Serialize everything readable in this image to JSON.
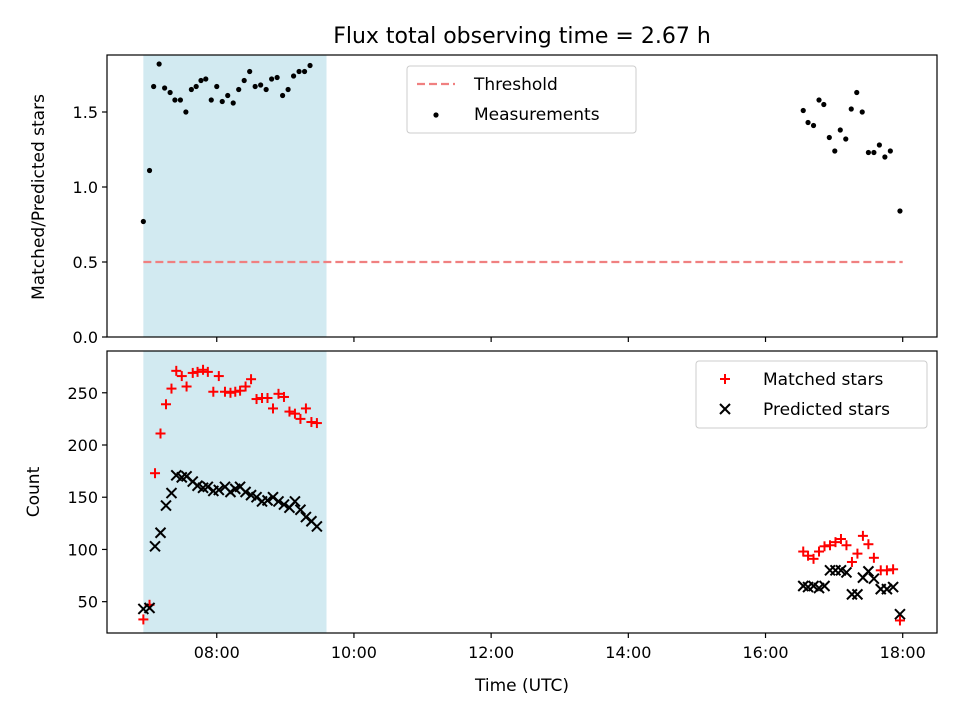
{
  "figure": {
    "title": "Flux total observing time = 2.67 h",
    "xlabel": "Time (UTC)",
    "x_ticks": [
      {
        "hours": 8,
        "label": "08:00"
      },
      {
        "hours": 10,
        "label": "10:00"
      },
      {
        "hours": 12,
        "label": "12:00"
      },
      {
        "hours": 14,
        "label": "14:00"
      },
      {
        "hours": 16,
        "label": "16:00"
      },
      {
        "hours": 18,
        "label": "18:00"
      }
    ],
    "xlim_hours": [
      6.4,
      18.5
    ],
    "shaded_region_hours": [
      6.93,
      9.6
    ],
    "shade_color": "#add8e6"
  },
  "chart_data": [
    {
      "type": "scatter",
      "ylabel": "Matched/Predicted stars",
      "ylim": [
        0,
        1.88
      ],
      "yticks": [
        0.0,
        0.5,
        1.0,
        1.5
      ],
      "ytick_labels": [
        "0.0",
        "0.5",
        "1.0",
        "1.5"
      ],
      "legend_position": "top-center",
      "threshold": {
        "name": "Threshold",
        "value": 0.5,
        "x_range_hours": [
          6.93,
          18.0
        ],
        "color": "#f08080"
      },
      "series": [
        {
          "name": "Measurements",
          "color": "#000000",
          "points": [
            [
              6.93,
              0.77
            ],
            [
              7.02,
              1.11
            ],
            [
              7.08,
              1.67
            ],
            [
              7.16,
              1.82
            ],
            [
              7.24,
              1.66
            ],
            [
              7.32,
              1.63
            ],
            [
              7.39,
              1.58
            ],
            [
              7.47,
              1.58
            ],
            [
              7.55,
              1.5
            ],
            [
              7.63,
              1.65
            ],
            [
              7.7,
              1.67
            ],
            [
              7.77,
              1.71
            ],
            [
              7.84,
              1.72
            ],
            [
              7.92,
              1.58
            ],
            [
              8.0,
              1.67
            ],
            [
              8.08,
              1.57
            ],
            [
              8.16,
              1.61
            ],
            [
              8.24,
              1.56
            ],
            [
              8.32,
              1.65
            ],
            [
              8.4,
              1.71
            ],
            [
              8.48,
              1.77
            ],
            [
              8.56,
              1.67
            ],
            [
              8.64,
              1.68
            ],
            [
              8.72,
              1.65
            ],
            [
              8.8,
              1.72
            ],
            [
              8.88,
              1.73
            ],
            [
              8.96,
              1.61
            ],
            [
              9.04,
              1.65
            ],
            [
              9.12,
              1.74
            ],
            [
              9.2,
              1.77
            ],
            [
              9.28,
              1.77
            ],
            [
              9.36,
              1.81
            ],
            [
              16.55,
              1.51
            ],
            [
              16.62,
              1.43
            ],
            [
              16.7,
              1.41
            ],
            [
              16.78,
              1.58
            ],
            [
              16.85,
              1.55
            ],
            [
              16.93,
              1.33
            ],
            [
              17.01,
              1.24
            ],
            [
              17.09,
              1.38
            ],
            [
              17.17,
              1.32
            ],
            [
              17.25,
              1.52
            ],
            [
              17.33,
              1.63
            ],
            [
              17.41,
              1.5
            ],
            [
              17.5,
              1.23
            ],
            [
              17.58,
              1.23
            ],
            [
              17.66,
              1.28
            ],
            [
              17.74,
              1.2
            ],
            [
              17.82,
              1.24
            ],
            [
              17.96,
              0.84
            ]
          ]
        }
      ]
    },
    {
      "type": "scatter",
      "ylabel": "Count",
      "ylim": [
        20,
        290
      ],
      "yticks": [
        50,
        100,
        150,
        200,
        250
      ],
      "ytick_labels": [
        "50",
        "100",
        "150",
        "200",
        "250"
      ],
      "legend_position": "top-right",
      "series": [
        {
          "name": "Matched stars",
          "marker": "plus",
          "color": "#ff0000",
          "points": [
            [
              6.93,
              33
            ],
            [
              7.02,
              47
            ],
            [
              7.1,
              173
            ],
            [
              7.18,
              211
            ],
            [
              7.26,
              239
            ],
            [
              7.34,
              254
            ],
            [
              7.41,
              271
            ],
            [
              7.49,
              266
            ],
            [
              7.56,
              256
            ],
            [
              7.65,
              269
            ],
            [
              7.72,
              270
            ],
            [
              7.8,
              272
            ],
            [
              7.87,
              270
            ],
            [
              7.95,
              251
            ],
            [
              8.03,
              266
            ],
            [
              8.12,
              251
            ],
            [
              8.2,
              250
            ],
            [
              8.27,
              251
            ],
            [
              8.34,
              252
            ],
            [
              8.42,
              256
            ],
            [
              8.5,
              263
            ],
            [
              8.58,
              244
            ],
            [
              8.66,
              245
            ],
            [
              8.74,
              245
            ],
            [
              8.82,
              235
            ],
            [
              8.9,
              249
            ],
            [
              8.98,
              246
            ],
            [
              9.06,
              232
            ],
            [
              9.14,
              230
            ],
            [
              9.22,
              225
            ],
            [
              9.3,
              235
            ],
            [
              9.38,
              222
            ],
            [
              9.46,
              221
            ],
            [
              16.55,
              98
            ],
            [
              16.62,
              94
            ],
            [
              16.7,
              91
            ],
            [
              16.78,
              98
            ],
            [
              16.86,
              103
            ],
            [
              16.94,
              104
            ],
            [
              17.02,
              107
            ],
            [
              17.1,
              110
            ],
            [
              17.18,
              104
            ],
            [
              17.26,
              88
            ],
            [
              17.34,
              96
            ],
            [
              17.42,
              113
            ],
            [
              17.5,
              105
            ],
            [
              17.58,
              92
            ],
            [
              17.68,
              80
            ],
            [
              17.77,
              80
            ],
            [
              17.86,
              81
            ],
            [
              17.96,
              32
            ]
          ]
        },
        {
          "name": "Predicted stars",
          "marker": "x",
          "color": "#000000",
          "points": [
            [
              6.93,
              43
            ],
            [
              7.02,
              44
            ],
            [
              7.1,
              103
            ],
            [
              7.18,
              116
            ],
            [
              7.26,
              142
            ],
            [
              7.34,
              154
            ],
            [
              7.41,
              171
            ],
            [
              7.49,
              169
            ],
            [
              7.56,
              170
            ],
            [
              7.65,
              165
            ],
            [
              7.72,
              161
            ],
            [
              7.8,
              159
            ],
            [
              7.87,
              160
            ],
            [
              7.95,
              156
            ],
            [
              8.03,
              157
            ],
            [
              8.12,
              160
            ],
            [
              8.2,
              155
            ],
            [
              8.27,
              158
            ],
            [
              8.34,
              160
            ],
            [
              8.42,
              155
            ],
            [
              8.5,
              152
            ],
            [
              8.58,
              150
            ],
            [
              8.66,
              146
            ],
            [
              8.74,
              147
            ],
            [
              8.82,
              150
            ],
            [
              8.9,
              146
            ],
            [
              8.98,
              143
            ],
            [
              9.06,
              140
            ],
            [
              9.14,
              146
            ],
            [
              9.22,
              138
            ],
            [
              9.3,
              131
            ],
            [
              9.38,
              127
            ],
            [
              9.46,
              122
            ],
            [
              16.55,
              65
            ],
            [
              16.62,
              64
            ],
            [
              16.7,
              65
            ],
            [
              16.78,
              63
            ],
            [
              16.86,
              65
            ],
            [
              16.94,
              80
            ],
            [
              17.02,
              80
            ],
            [
              17.1,
              80
            ],
            [
              17.18,
              78
            ],
            [
              17.26,
              57
            ],
            [
              17.34,
              57
            ],
            [
              17.42,
              73
            ],
            [
              17.5,
              79
            ],
            [
              17.58,
              72
            ],
            [
              17.68,
              62
            ],
            [
              17.77,
              62
            ],
            [
              17.86,
              64
            ],
            [
              17.96,
              38
            ]
          ]
        }
      ]
    }
  ]
}
